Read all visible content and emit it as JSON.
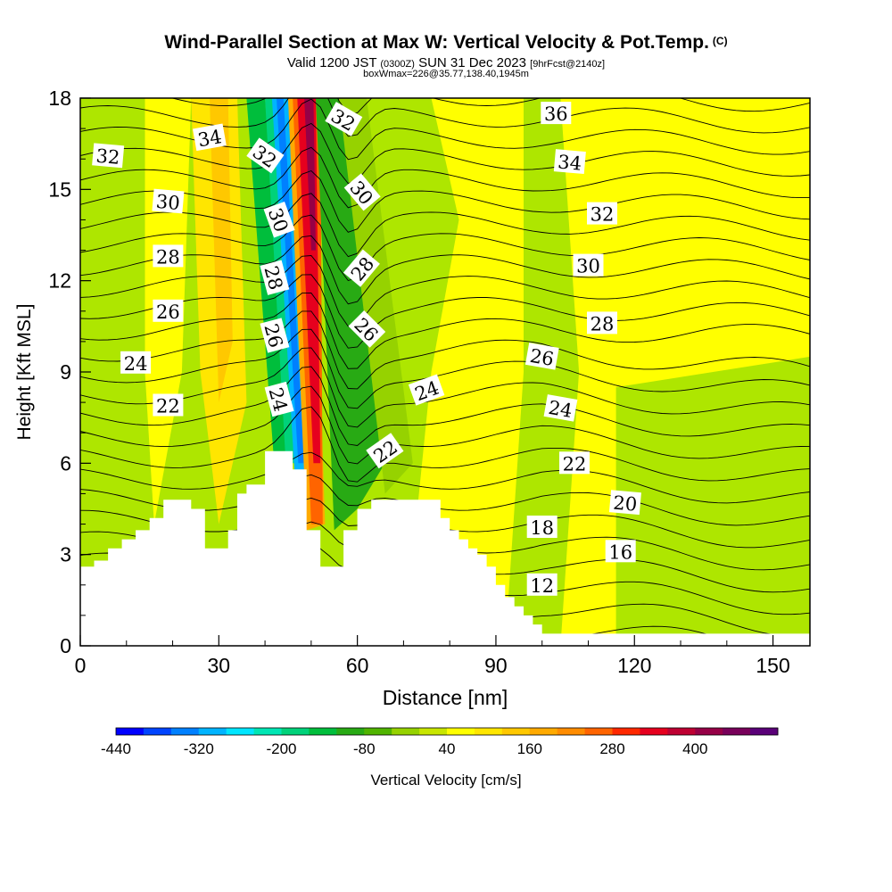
{
  "header": {
    "title": "Wind-Parallel Section at Max W: Vertical Velocity & Pot.Temp.",
    "copyright": "(C)",
    "valid_prefix": "Valid 1200 JST",
    "valid_utc": "(0300Z)",
    "valid_date": "SUN 31 Dec 2023",
    "forecast": "[9hrFcst@2140z]",
    "box_info": "boxWmax=226@35.77,138.40,1945m"
  },
  "chart_data": {
    "type": "heatmap",
    "xlabel": "Distance [nm]",
    "ylabel": "Height [Kft MSL]",
    "xlim": [
      0,
      158
    ],
    "ylim": [
      0,
      18
    ],
    "x_ticks": [
      "0",
      "30",
      "60",
      "90",
      "120",
      "150"
    ],
    "x_tick_values": [
      0,
      30,
      60,
      90,
      120,
      150
    ],
    "y_ticks": [
      "0",
      "3",
      "6",
      "9",
      "12",
      "15",
      "18"
    ],
    "y_tick_values": [
      0,
      3,
      6,
      9,
      12,
      15,
      18
    ],
    "colorbar": {
      "label": "Vertical Velocity [cm/s]",
      "labels": [
        "-440",
        "-320",
        "-200",
        "-80",
        "40",
        "160",
        "280",
        "400"
      ],
      "colors": [
        "#0000ff",
        "#0044ff",
        "#0080ff",
        "#00b4ff",
        "#00e6ff",
        "#00e6b4",
        "#00d27a",
        "#00be3c",
        "#28aa14",
        "#50b400",
        "#96d200",
        "#c8e600",
        "#ffff00",
        "#ffe600",
        "#ffc800",
        "#ffaa00",
        "#ff8c00",
        "#ff6400",
        "#ff2800",
        "#e6001e",
        "#be0032",
        "#960046",
        "#78005a",
        "#5a0078"
      ]
    },
    "terrain": {
      "x": [
        0,
        3,
        6,
        9,
        12,
        15,
        18,
        21,
        24,
        27,
        30,
        32,
        34,
        36,
        38,
        40,
        43,
        46,
        49,
        52,
        55,
        57,
        60,
        63,
        66,
        70,
        75,
        78,
        80,
        82,
        84,
        86,
        88,
        90,
        92,
        94,
        96,
        98,
        100,
        158
      ],
      "y": [
        2.6,
        2.8,
        3.2,
        3.5,
        3.8,
        4.2,
        4.8,
        4.8,
        4.5,
        3.2,
        3.2,
        3.8,
        5.0,
        5.3,
        5.3,
        6.4,
        6.4,
        5.8,
        3.8,
        2.6,
        2.6,
        3.8,
        4.5,
        4.8,
        4.8,
        4.8,
        4.8,
        4.2,
        3.8,
        3.5,
        3.2,
        3.0,
        2.6,
        2.0,
        1.6,
        1.3,
        1.0,
        0.7,
        0.4,
        0.4
      ]
    },
    "theta_contour_labels": [
      {
        "text": "32",
        "x": 6,
        "y": 16.1,
        "angle": 5
      },
      {
        "text": "34",
        "x": 28,
        "y": 16.7,
        "angle": -10
      },
      {
        "text": "30",
        "x": 19,
        "y": 14.6,
        "angle": 5
      },
      {
        "text": "28",
        "x": 19,
        "y": 12.8,
        "angle": 0
      },
      {
        "text": "26",
        "x": 19,
        "y": 11.0,
        "angle": 0
      },
      {
        "text": "24",
        "x": 12,
        "y": 9.3,
        "angle": 0
      },
      {
        "text": "22",
        "x": 19,
        "y": 7.9,
        "angle": 0
      },
      {
        "text": "32",
        "x": 40,
        "y": 16.1,
        "angle": 35
      },
      {
        "text": "30",
        "x": 43,
        "y": 14.0,
        "angle": 70
      },
      {
        "text": "28",
        "x": 42,
        "y": 12.1,
        "angle": 75
      },
      {
        "text": "26",
        "x": 42,
        "y": 10.2,
        "angle": 75
      },
      {
        "text": "24",
        "x": 43,
        "y": 8.1,
        "angle": 75
      },
      {
        "text": "32",
        "x": 57,
        "y": 17.3,
        "angle": 30
      },
      {
        "text": "30",
        "x": 61,
        "y": 14.9,
        "angle": 50
      },
      {
        "text": "28",
        "x": 61,
        "y": 12.4,
        "angle": -50
      },
      {
        "text": "26",
        "x": 62,
        "y": 10.4,
        "angle": 45
      },
      {
        "text": "24",
        "x": 75,
        "y": 8.4,
        "angle": -20
      },
      {
        "text": "22",
        "x": 66,
        "y": 6.4,
        "angle": -35
      },
      {
        "text": "36",
        "x": 103,
        "y": 17.5,
        "angle": 0
      },
      {
        "text": "34",
        "x": 106,
        "y": 15.9,
        "angle": 5
      },
      {
        "text": "32",
        "x": 113,
        "y": 14.2,
        "angle": 0
      },
      {
        "text": "30",
        "x": 110,
        "y": 12.5,
        "angle": 0
      },
      {
        "text": "28",
        "x": 113,
        "y": 10.6,
        "angle": 0
      },
      {
        "text": "26",
        "x": 100,
        "y": 9.5,
        "angle": 10
      },
      {
        "text": "24",
        "x": 104,
        "y": 7.8,
        "angle": 10
      },
      {
        "text": "22",
        "x": 107,
        "y": 6.0,
        "angle": 0
      },
      {
        "text": "20",
        "x": 118,
        "y": 4.7,
        "angle": 5
      },
      {
        "text": "18",
        "x": 100,
        "y": 3.9,
        "angle": 0
      },
      {
        "text": "16",
        "x": 117,
        "y": 3.1,
        "angle": 0
      },
      {
        "text": "12",
        "x": 100,
        "y": 2.0,
        "angle": 0
      }
    ]
  }
}
